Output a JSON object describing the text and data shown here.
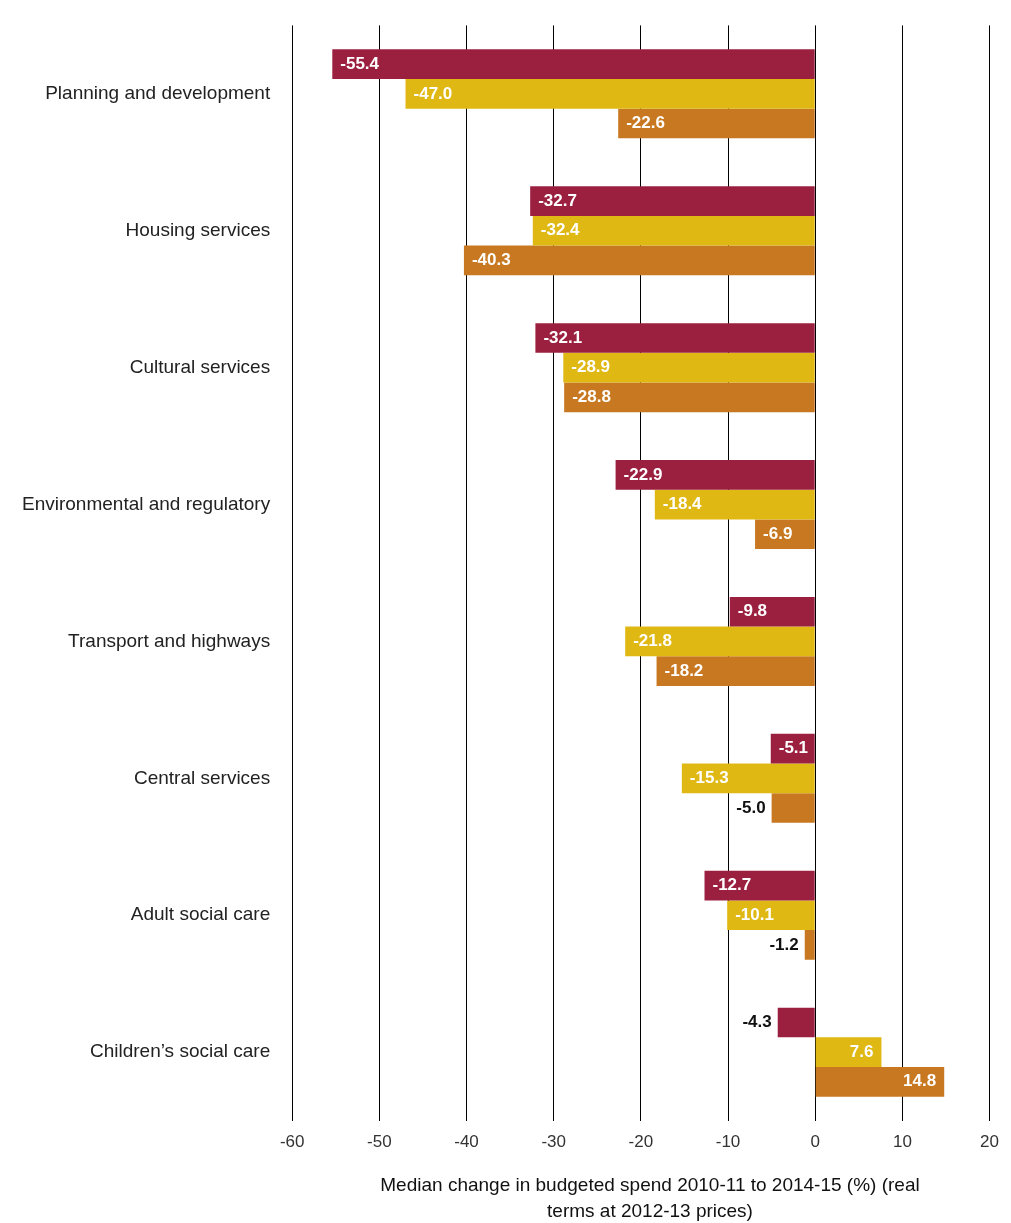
{
  "chart_data": {
    "type": "bar",
    "orientation": "horizontal",
    "xlabel": "Median change in budgeted spend 2010-11 to 2014-15 (%) (real terms at 2012-13 prices)",
    "categories": [
      "Planning and development",
      "Housing services",
      "Cultural services",
      "Environmental and regulatory",
      "Transport and highways",
      "Central services",
      "Adult social care",
      "Children’s social care"
    ],
    "series": [
      {
        "color": "#9b2040",
        "values": [
          -55.4,
          -32.7,
          -32.1,
          -22.9,
          -9.8,
          -5.1,
          -12.7,
          -4.3
        ],
        "value_labels": [
          "-55.4",
          "-32.7",
          "-32.1",
          "-22.9",
          "-9.8",
          "-5.1",
          "-12.7",
          "-4.3"
        ]
      },
      {
        "color": "#e0b814",
        "values": [
          -47.0,
          -32.4,
          -28.9,
          -18.4,
          -21.8,
          -15.3,
          -10.1,
          7.6
        ],
        "value_labels": [
          "-47.0",
          "-32.4",
          "-28.9",
          "-18.4",
          "-21.8",
          "-15.3",
          "-10.1",
          "7.6"
        ]
      },
      {
        "color": "#c87820",
        "values": [
          -22.6,
          -40.3,
          -28.8,
          -6.9,
          -18.2,
          -5.0,
          -1.2,
          14.8
        ],
        "value_labels": [
          "-22.6",
          "-40.3",
          "-28.8",
          "-6.9",
          "-18.2",
          "-5.0",
          "-1.2",
          "14.8"
        ]
      }
    ],
    "xlim": [
      -60,
      20
    ],
    "xticks": [
      -60,
      -50,
      -40,
      -30,
      -20,
      -10,
      0,
      10,
      20
    ],
    "grid": "x",
    "legend": false
  }
}
